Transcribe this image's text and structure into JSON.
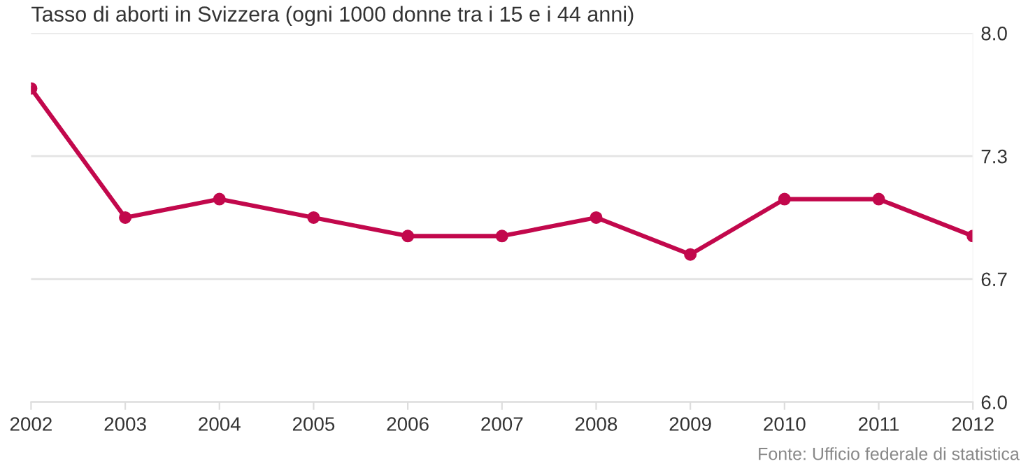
{
  "chart_data": {
    "type": "line",
    "title": "Tasso di aborti in Svizzera (ogni 1000 donne tra i 15 e i 44 anni)",
    "x": [
      2002,
      2003,
      2004,
      2005,
      2006,
      2007,
      2008,
      2009,
      2010,
      2011,
      2012
    ],
    "series": [
      {
        "color": "#c2084c",
        "values": [
          7.7,
          7.0,
          7.1,
          7.0,
          6.9,
          6.9,
          7.0,
          6.8,
          7.1,
          7.1,
          6.9
        ]
      }
    ],
    "xlim": [
      2002,
      2012
    ],
    "xticks": [
      2002,
      2003,
      2004,
      2005,
      2006,
      2007,
      2008,
      2009,
      2010,
      2011,
      2012
    ],
    "ylim": [
      6.0,
      8.0
    ],
    "yticks": [
      {
        "value": 6.0,
        "label": "6.0"
      },
      {
        "value": 6.667,
        "label": "6.7"
      },
      {
        "value": 7.333,
        "label": "7.3"
      },
      {
        "value": 8.0,
        "label": "8.0"
      }
    ],
    "grid": "y",
    "marker": "circle",
    "line_style": "solid",
    "annotations": [
      "Fonte: Ufficio federale di statistica"
    ]
  }
}
